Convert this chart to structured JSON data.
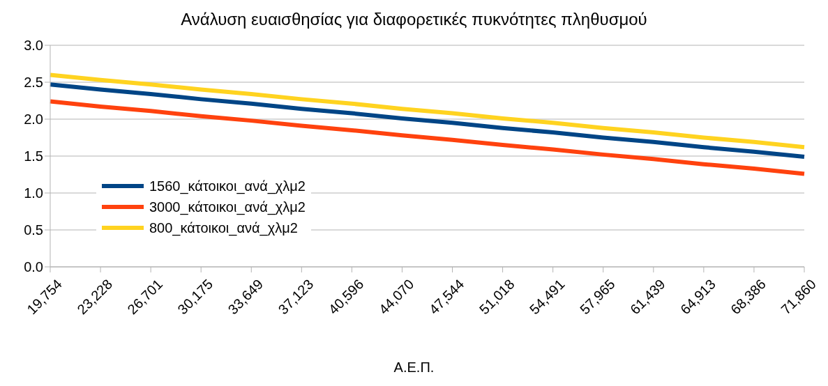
{
  "chart_data": {
    "type": "line",
    "title": "Ανάλυση ευαισθησίας για διαφορετικές πυκνότητες πληθυσμού",
    "xlabel": "Α.Ε.Π.",
    "categories": [
      "19,754",
      "23,228",
      "26,701",
      "30,175",
      "33,649",
      "37,123",
      "40,596",
      "44,070",
      "47,544",
      "51,018",
      "54,491",
      "57,965",
      "61,439",
      "64,913",
      "68,386",
      "71,860"
    ],
    "series": [
      {
        "name": "1560_κάτοικοι_ανά_χλμ2",
        "color": "#004586",
        "values": [
          2.47,
          2.4,
          2.34,
          2.27,
          2.21,
          2.14,
          2.08,
          2.01,
          1.95,
          1.88,
          1.82,
          1.75,
          1.69,
          1.62,
          1.56,
          1.49
        ]
      },
      {
        "name": "3000_κάτοικοι_ανά_χλμ2",
        "color": "#ff420e",
        "values": [
          2.24,
          2.17,
          2.11,
          2.04,
          1.98,
          1.91,
          1.85,
          1.78,
          1.72,
          1.65,
          1.59,
          1.52,
          1.46,
          1.39,
          1.33,
          1.26
        ]
      },
      {
        "name": "800_κάτοικοι_ανά_χλμ2",
        "color": "#ffd320",
        "values": [
          2.6,
          2.53,
          2.47,
          2.4,
          2.34,
          2.27,
          2.21,
          2.14,
          2.08,
          2.01,
          1.95,
          1.88,
          1.82,
          1.75,
          1.69,
          1.62
        ]
      }
    ],
    "ylim": [
      0,
      3
    ],
    "yticks": [
      {
        "value": 0,
        "label": "0.0"
      },
      0.5,
      {
        "value": 1,
        "label": "1.0"
      },
      1.5,
      {
        "value": 2,
        "label": "2.0"
      },
      2.5,
      {
        "value": 3,
        "label": "3.0"
      }
    ],
    "grid": "y",
    "legend": "left",
    "marker": "none",
    "line_style": "solid"
  }
}
